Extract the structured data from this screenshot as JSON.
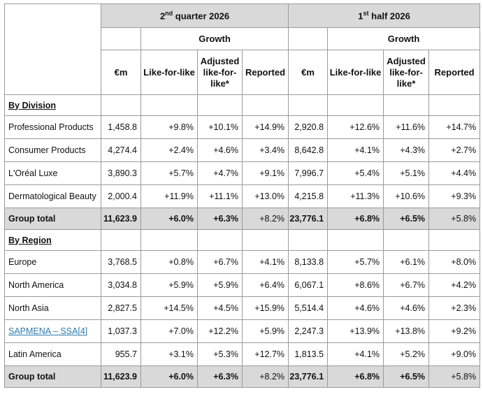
{
  "header": {
    "q2_prefix": "2",
    "q2_sup": "nd",
    "q2_suffix": " quarter 2026",
    "h1_prefix": "1",
    "h1_sup": "st",
    "h1_suffix": " half 2026",
    "growth": "Growth",
    "columns": {
      "em": "€m",
      "lfl": "Like-for-like",
      "adjusted": "Adjusted like-for-like*",
      "reported": "Reported"
    }
  },
  "division": {
    "title": "By Division",
    "rows": [
      {
        "name": "Professional Products",
        "q2_em": "1,458.8",
        "q2_lfl": "+9.8%",
        "q2_adj": "+10.1%",
        "q2_rep": "+14.9%",
        "h1_em": "2,920.8",
        "h1_lfl": "+12.6%",
        "h1_adj": "+11.6%",
        "h1_rep": "+14.7%"
      },
      {
        "name": "Consumer Products",
        "q2_em": "4,274.4",
        "q2_lfl": "+2.4%",
        "q2_adj": "+4.6%",
        "q2_rep": "+3.4%",
        "h1_em": "8,642.8",
        "h1_lfl": "+4.1%",
        "h1_adj": "+4.3%",
        "h1_rep": "+2.7%"
      },
      {
        "name": "L'Oréal Luxe",
        "q2_em": "3,890.3",
        "q2_lfl": "+5.7%",
        "q2_adj": "+4.7%",
        "q2_rep": "+9.1%",
        "h1_em": "7,996.7",
        "h1_lfl": "+5.4%",
        "h1_adj": "+5.1%",
        "h1_rep": "+4.4%"
      },
      {
        "name": "Dermatological Beauty",
        "q2_em": "2,000.4",
        "q2_lfl": "+11.9%",
        "q2_adj": "+11.1%",
        "q2_rep": "+13.0%",
        "h1_em": "4,215.8",
        "h1_lfl": "+11.3%",
        "h1_adj": "+10.6%",
        "h1_rep": "+9.3%"
      }
    ],
    "total": {
      "name": "Group total",
      "q2_em": "11,623.9",
      "q2_lfl": "+6.0%",
      "q2_adj": "+6.3%",
      "q2_rep": "+8.2%",
      "h1_em": "23,776.1",
      "h1_lfl": "+6.8%",
      "h1_adj": "+6.5%",
      "h1_rep": "+5.8%"
    }
  },
  "region": {
    "title": "By Region",
    "rows": [
      {
        "name": "Europe",
        "q2_em": "3,768.5",
        "q2_lfl": "+0.8%",
        "q2_adj": "+6.7%",
        "q2_rep": "+4.1%",
        "h1_em": "8,133.8",
        "h1_lfl": "+5.7%",
        "h1_adj": "+6.1%",
        "h1_rep": "+8.0%"
      },
      {
        "name": "North America",
        "q2_em": "3,034.8",
        "q2_lfl": "+5.9%",
        "q2_adj": "+5.9%",
        "q2_rep": "+6.4%",
        "h1_em": "6,067.1",
        "h1_lfl": "+8.6%",
        "h1_adj": "+6.7%",
        "h1_rep": "+4.2%"
      },
      {
        "name": "North Asia",
        "q2_em": "2,827.5",
        "q2_lfl": "+14.5%",
        "q2_adj": "+4.5%",
        "q2_rep": "+15.9%",
        "h1_em": "5,514.4",
        "h1_lfl": "+4.6%",
        "h1_adj": "+4.6%",
        "h1_rep": "+2.3%"
      },
      {
        "name": "SAPMENA – SSA",
        "footnote": "[4]",
        "q2_em": "1,037.3",
        "q2_lfl": "+7.0%",
        "q2_adj": "+12.2%",
        "q2_rep": "+5.9%",
        "h1_em": "2,247.3",
        "h1_lfl": "+13.9%",
        "h1_adj": "+13.8%",
        "h1_rep": "+9.2%"
      },
      {
        "name": "Latin America",
        "q2_em": "955.7",
        "q2_lfl": "+3.1%",
        "q2_adj": "+5.3%",
        "q2_rep": "+12.7%",
        "h1_em": "1,813.5",
        "h1_lfl": "+4.1%",
        "h1_adj": "+5.2%",
        "h1_rep": "+9.0%"
      }
    ],
    "total": {
      "name": "Group total",
      "q2_em": "11,623.9",
      "q2_lfl": "+6.0%",
      "q2_adj": "+6.3%",
      "q2_rep": "+8.2%",
      "h1_em": "23,776.1",
      "h1_lfl": "+6.8%",
      "h1_adj": "+6.5%",
      "h1_rep": "+5.8%"
    }
  }
}
